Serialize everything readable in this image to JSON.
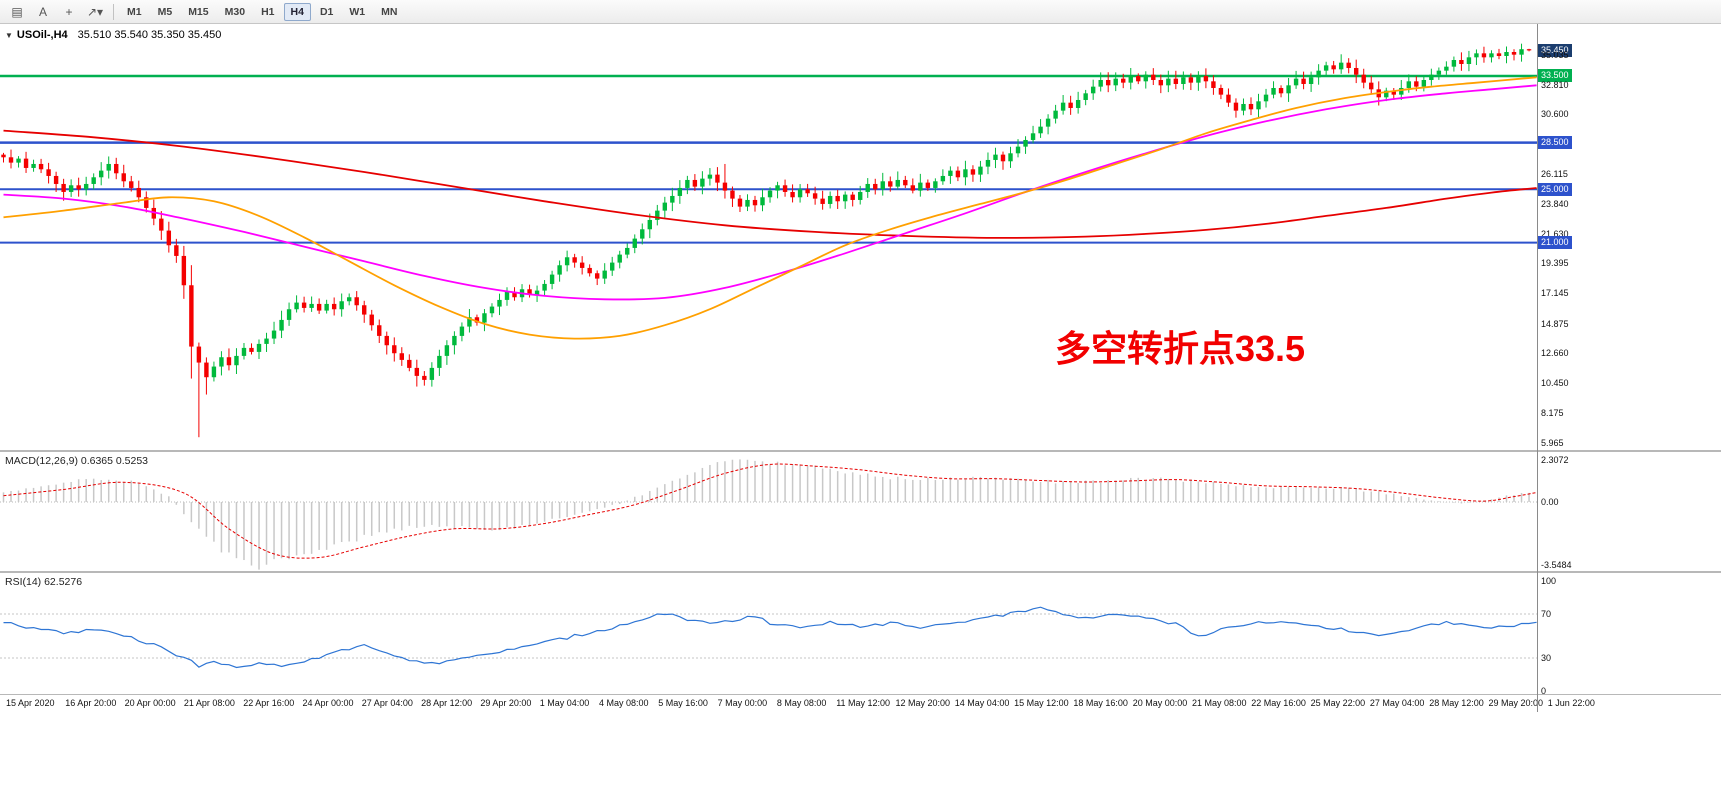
{
  "toolbar": {
    "tools": [
      {
        "name": "charts-icon",
        "glyph": "▤"
      },
      {
        "name": "text-tool",
        "glyph": "A"
      },
      {
        "name": "crosshair-tool",
        "glyph": "+"
      },
      {
        "name": "draw-tools-dropdown",
        "glyph": "↗",
        "caret": "▾"
      }
    ],
    "timeframes": [
      "M1",
      "M5",
      "M15",
      "M30",
      "H1",
      "H4",
      "D1",
      "W1",
      "MN"
    ],
    "active_timeframe": "H4"
  },
  "annotation": {
    "text": "多空转折点33.5",
    "color": "#f20000"
  },
  "colors": {
    "up": "#00b93c",
    "down": "#f40000",
    "ma_red": "#e60000",
    "ma_magenta": "#ff00ff",
    "ma_orange": "#ffa000",
    "line_blue": "#2d52cc",
    "line_green": "#00b050",
    "badge_current_bg": "#1b3d6e",
    "macd_bar": "#c8c8c8",
    "macd_signal": "#e60000",
    "rsi_line": "#2e75d4"
  },
  "chart_data": {
    "type": "candlestick",
    "symbol": "USOil-",
    "timeframe": "H4",
    "title_symbol": "USOil-,H4",
    "title_ohlc": "35.510 35.540 35.350 35.450",
    "ohlc_display": {
      "open": "35.510",
      "high": "35.540",
      "low": "35.350",
      "close": "35.450"
    },
    "price_axis": {
      "labels": [
        {
          "value": "35.450",
          "badge": "current"
        },
        {
          "value": "35.035"
        },
        {
          "value": "33.500",
          "badge": "green"
        },
        {
          "value": "32.810"
        },
        {
          "value": "30.600"
        },
        {
          "value": "28.500",
          "badge": "blue"
        },
        {
          "value": "26.115"
        },
        {
          "value": "25.000",
          "badge": "blue"
        },
        {
          "value": "23.840"
        },
        {
          "value": "21.630"
        },
        {
          "value": "21.000",
          "badge": "blue"
        },
        {
          "value": "19.395"
        },
        {
          "value": "17.145"
        },
        {
          "value": "14.875"
        },
        {
          "value": "12.660"
        },
        {
          "value": "10.450"
        },
        {
          "value": "8.175"
        },
        {
          "value": "5.965"
        }
      ]
    },
    "x_axis": {
      "labels": [
        "15 Apr 2020",
        "16 Apr 20:00",
        "20 Apr 00:00",
        "21 Apr 08:00",
        "22 Apr 16:00",
        "24 Apr 00:00",
        "27 Apr 04:00",
        "28 Apr 12:00",
        "29 Apr 20:00",
        "1 May 04:00",
        "4 May 08:00",
        "5 May 16:00",
        "7 May 00:00",
        "8 May 08:00",
        "11 May 12:00",
        "12 May 20:00",
        "14 May 04:00",
        "15 May 12:00",
        "18 May 16:00",
        "20 May 00:00",
        "21 May 08:00",
        "22 May 16:00",
        "25 May 22:00",
        "27 May 04:00",
        "28 May 12:00",
        "29 May 20:00",
        "1 Jun 22:00"
      ]
    },
    "hlines": [
      {
        "price": 33.5,
        "color": "green",
        "width": 2.5
      },
      {
        "price": 28.5,
        "color": "blue",
        "width": 2.5
      },
      {
        "price": 25.0,
        "color": "blue",
        "width": 2
      },
      {
        "price": 21.0,
        "color": "blue",
        "width": 2
      }
    ],
    "candles": {
      "first_open": 27.6,
      "closes": [
        27.4,
        27.0,
        27.3,
        26.6,
        26.9,
        26.5,
        26.0,
        25.4,
        24.8,
        25.3,
        25.0,
        25.4,
        25.9,
        26.4,
        26.9,
        26.2,
        25.6,
        25.1,
        24.4,
        23.6,
        22.8,
        21.9,
        20.8,
        20.0,
        17.8,
        13.2,
        12.0,
        10.9,
        11.7,
        12.4,
        11.8,
        12.5,
        13.1,
        12.8,
        13.4,
        13.8,
        14.4,
        15.2,
        16.0,
        16.5,
        16.1,
        16.4,
        15.9,
        16.4,
        16.0,
        16.6,
        16.9,
        16.3,
        15.6,
        14.8,
        14.0,
        13.3,
        12.7,
        12.2,
        11.6,
        11.0,
        10.7,
        11.6,
        12.5,
        13.3,
        14.0,
        14.7,
        15.4,
        15.0,
        15.7,
        16.2,
        16.7,
        17.3,
        16.9,
        17.5,
        17.1,
        17.4,
        17.9,
        18.6,
        19.3,
        19.9,
        19.5,
        19.1,
        18.7,
        18.3,
        18.9,
        19.5,
        20.1,
        20.6,
        21.3,
        22.0,
        22.7,
        23.4,
        24.0,
        24.5,
        25.1,
        25.7,
        25.2,
        25.8,
        26.1,
        25.5,
        24.9,
        24.3,
        23.7,
        24.2,
        23.8,
        24.4,
        24.9,
        25.3,
        24.8,
        24.4,
        25.0,
        24.7,
        24.3,
        23.9,
        24.5,
        24.1,
        24.6,
        24.2,
        24.8,
        25.4,
        25.0,
        25.6,
        25.2,
        25.7,
        25.3,
        24.9,
        25.5,
        25.1,
        25.6,
        26.0,
        26.4,
        25.9,
        26.5,
        26.1,
        26.7,
        27.2,
        27.6,
        27.1,
        27.7,
        28.2,
        28.7,
        29.2,
        29.7,
        30.3,
        30.9,
        31.5,
        31.1,
        31.7,
        32.2,
        32.7,
        33.2,
        32.8,
        33.3,
        33.0,
        33.5,
        33.1,
        33.6,
        33.2,
        32.8,
        33.3,
        32.9,
        33.4,
        33.0,
        33.5,
        33.1,
        32.6,
        32.1,
        31.5,
        30.9,
        31.4,
        31.0,
        31.6,
        32.1,
        32.6,
        32.2,
        32.8,
        33.3,
        32.9,
        33.4,
        33.9,
        34.3,
        34.0,
        34.5,
        34.1,
        33.6,
        33.0,
        32.5,
        31.9,
        32.4,
        32.1,
        32.6,
        33.1,
        32.7,
        33.2,
        33.6,
        33.9,
        34.2,
        34.7,
        34.4,
        34.9,
        35.2,
        34.9,
        35.2,
        35.0,
        35.3,
        35.1,
        35.51,
        35.45
      ],
      "overrides": {
        "25": {
          "low": 10.8
        },
        "26": {
          "low": 6.4,
          "high": 13.5
        },
        "27": {
          "low": 9.6
        },
        "55": {
          "low": 10.2
        },
        "96": {
          "high": 26.9
        },
        "203": {
          "high": 35.54,
          "low": 35.35
        }
      }
    },
    "ma_lines": [
      {
        "name": "ma-slow-red",
        "color_key": "ma_red",
        "points": [
          [
            0,
            29.4
          ],
          [
            12,
            28.9
          ],
          [
            24,
            28.2
          ],
          [
            36,
            27.3
          ],
          [
            48,
            26.3
          ],
          [
            60,
            25.2
          ],
          [
            72,
            24.1
          ],
          [
            84,
            23.1
          ],
          [
            96,
            22.3
          ],
          [
            108,
            21.8
          ],
          [
            120,
            21.5
          ],
          [
            132,
            21.35
          ],
          [
            144,
            21.45
          ],
          [
            152,
            21.65
          ],
          [
            160,
            21.95
          ],
          [
            168,
            22.4
          ],
          [
            176,
            23.0
          ],
          [
            184,
            23.6
          ],
          [
            192,
            24.3
          ],
          [
            198,
            24.75
          ],
          [
            204,
            25.1
          ]
        ]
      },
      {
        "name": "ma-mid-magenta",
        "color_key": "ma_magenta",
        "points": [
          [
            0,
            24.6
          ],
          [
            8,
            24.3
          ],
          [
            16,
            23.7
          ],
          [
            24,
            22.8
          ],
          [
            32,
            21.8
          ],
          [
            40,
            20.7
          ],
          [
            48,
            19.6
          ],
          [
            56,
            18.5
          ],
          [
            64,
            17.6
          ],
          [
            72,
            17.0
          ],
          [
            80,
            16.75
          ],
          [
            88,
            16.85
          ],
          [
            96,
            17.6
          ],
          [
            104,
            18.8
          ],
          [
            112,
            20.2
          ],
          [
            120,
            21.7
          ],
          [
            128,
            23.2
          ],
          [
            136,
            24.8
          ],
          [
            144,
            26.3
          ],
          [
            152,
            27.7
          ],
          [
            160,
            29.0
          ],
          [
            168,
            30.1
          ],
          [
            176,
            31.0
          ],
          [
            184,
            31.7
          ],
          [
            192,
            32.2
          ],
          [
            198,
            32.5
          ],
          [
            204,
            32.8
          ]
        ]
      },
      {
        "name": "ma-fast-orange",
        "color_key": "ma_orange",
        "points": [
          [
            0,
            22.9
          ],
          [
            8,
            23.4
          ],
          [
            16,
            24.0
          ],
          [
            22,
            24.4
          ],
          [
            28,
            24.1
          ],
          [
            34,
            23.0
          ],
          [
            40,
            21.4
          ],
          [
            46,
            19.6
          ],
          [
            52,
            17.8
          ],
          [
            58,
            16.2
          ],
          [
            64,
            14.9
          ],
          [
            70,
            14.1
          ],
          [
            76,
            13.8
          ],
          [
            82,
            14.0
          ],
          [
            88,
            14.8
          ],
          [
            94,
            16.0
          ],
          [
            100,
            17.6
          ],
          [
            106,
            19.2
          ],
          [
            112,
            20.8
          ],
          [
            118,
            22.0
          ],
          [
            124,
            23.0
          ],
          [
            130,
            23.9
          ],
          [
            136,
            24.8
          ],
          [
            142,
            25.8
          ],
          [
            148,
            26.9
          ],
          [
            154,
            28.0
          ],
          [
            160,
            29.2
          ],
          [
            166,
            30.2
          ],
          [
            172,
            31.1
          ],
          [
            178,
            31.8
          ],
          [
            184,
            32.3
          ],
          [
            190,
            32.7
          ],
          [
            196,
            33.0
          ],
          [
            204,
            33.4
          ]
        ]
      }
    ],
    "macd": {
      "title": "MACD(12,26,9) 0.6365 0.5253",
      "current_macd": 0.6365,
      "current_signal": 0.5253,
      "axis": [
        "2.3072",
        "0.00",
        "-3.5484"
      ],
      "range": [
        -3.5484,
        2.3072
      ],
      "hist_points": [
        [
          0,
          0.5
        ],
        [
          6,
          0.95
        ],
        [
          12,
          1.3
        ],
        [
          18,
          1.1
        ],
        [
          22,
          0.3
        ],
        [
          26,
          -1.6
        ],
        [
          30,
          -3.0
        ],
        [
          34,
          -3.55
        ],
        [
          38,
          -3.3
        ],
        [
          42,
          -2.8
        ],
        [
          46,
          -2.2
        ],
        [
          50,
          -1.7
        ],
        [
          54,
          -1.4
        ],
        [
          58,
          -1.3
        ],
        [
          62,
          -1.5
        ],
        [
          66,
          -1.55
        ],
        [
          70,
          -1.3
        ],
        [
          74,
          -0.9
        ],
        [
          78,
          -0.5
        ],
        [
          82,
          -0.1
        ],
        [
          86,
          0.6
        ],
        [
          90,
          1.4
        ],
        [
          94,
          2.0
        ],
        [
          98,
          2.31
        ],
        [
          102,
          2.2
        ],
        [
          106,
          2.0
        ],
        [
          110,
          1.8
        ],
        [
          114,
          1.55
        ],
        [
          118,
          1.35
        ],
        [
          122,
          1.25
        ],
        [
          126,
          1.3
        ],
        [
          130,
          1.35
        ],
        [
          134,
          1.25
        ],
        [
          138,
          1.15
        ],
        [
          142,
          1.1
        ],
        [
          146,
          1.15
        ],
        [
          150,
          1.25
        ],
        [
          154,
          1.3
        ],
        [
          158,
          1.2
        ],
        [
          162,
          1.0
        ],
        [
          166,
          0.85
        ],
        [
          170,
          0.8
        ],
        [
          174,
          0.85
        ],
        [
          178,
          0.8
        ],
        [
          182,
          0.6
        ],
        [
          186,
          0.35
        ],
        [
          190,
          0.1
        ],
        [
          194,
          -0.1
        ],
        [
          198,
          0.15
        ],
        [
          202,
          0.5
        ],
        [
          204,
          0.64
        ]
      ],
      "signal_points": [
        [
          0,
          0.35
        ],
        [
          8,
          0.7
        ],
        [
          16,
          1.1
        ],
        [
          24,
          0.5
        ],
        [
          30,
          -1.5
        ],
        [
          36,
          -2.9
        ],
        [
          42,
          -3.1
        ],
        [
          48,
          -2.5
        ],
        [
          54,
          -1.9
        ],
        [
          60,
          -1.5
        ],
        [
          66,
          -1.5
        ],
        [
          72,
          -1.2
        ],
        [
          78,
          -0.7
        ],
        [
          84,
          -0.15
        ],
        [
          90,
          0.7
        ],
        [
          96,
          1.6
        ],
        [
          102,
          2.1
        ],
        [
          108,
          2.0
        ],
        [
          114,
          1.8
        ],
        [
          120,
          1.5
        ],
        [
          126,
          1.3
        ],
        [
          132,
          1.3
        ],
        [
          138,
          1.2
        ],
        [
          144,
          1.12
        ],
        [
          150,
          1.18
        ],
        [
          156,
          1.25
        ],
        [
          162,
          1.1
        ],
        [
          168,
          0.9
        ],
        [
          174,
          0.85
        ],
        [
          180,
          0.75
        ],
        [
          186,
          0.5
        ],
        [
          192,
          0.2
        ],
        [
          197,
          0.05
        ],
        [
          201,
          0.3
        ],
        [
          204,
          0.53
        ]
      ]
    },
    "rsi": {
      "title": "RSI(14) 62.5276",
      "current": 62.5276,
      "axis": [
        100,
        70,
        30,
        0
      ],
      "levels": [
        70,
        30
      ],
      "points": [
        [
          0,
          62
        ],
        [
          4,
          57
        ],
        [
          8,
          53
        ],
        [
          12,
          56
        ],
        [
          16,
          50
        ],
        [
          20,
          42
        ],
        [
          24,
          30
        ],
        [
          26,
          23
        ],
        [
          28,
          27
        ],
        [
          31,
          21
        ],
        [
          34,
          25
        ],
        [
          37,
          22
        ],
        [
          40,
          27
        ],
        [
          44,
          35
        ],
        [
          48,
          41
        ],
        [
          52,
          33
        ],
        [
          55,
          27
        ],
        [
          58,
          25
        ],
        [
          61,
          29
        ],
        [
          64,
          33
        ],
        [
          68,
          38
        ],
        [
          72,
          44
        ],
        [
          76,
          50
        ],
        [
          80,
          56
        ],
        [
          84,
          63
        ],
        [
          88,
          71
        ],
        [
          90,
          66
        ],
        [
          94,
          61
        ],
        [
          98,
          65
        ],
        [
          100,
          68
        ],
        [
          102,
          62
        ],
        [
          106,
          58
        ],
        [
          110,
          63
        ],
        [
          114,
          58
        ],
        [
          118,
          62
        ],
        [
          122,
          58
        ],
        [
          126,
          62
        ],
        [
          130,
          66
        ],
        [
          134,
          70
        ],
        [
          138,
          76
        ],
        [
          140,
          71
        ],
        [
          144,
          66
        ],
        [
          148,
          70
        ],
        [
          152,
          66
        ],
        [
          156,
          61
        ],
        [
          159,
          50
        ],
        [
          162,
          56
        ],
        [
          166,
          61
        ],
        [
          170,
          64
        ],
        [
          174,
          60
        ],
        [
          178,
          56
        ],
        [
          182,
          52
        ],
        [
          184,
          50
        ],
        [
          188,
          57
        ],
        [
          192,
          63
        ],
        [
          196,
          59
        ],
        [
          200,
          58
        ],
        [
          204,
          62.5
        ]
      ]
    }
  }
}
